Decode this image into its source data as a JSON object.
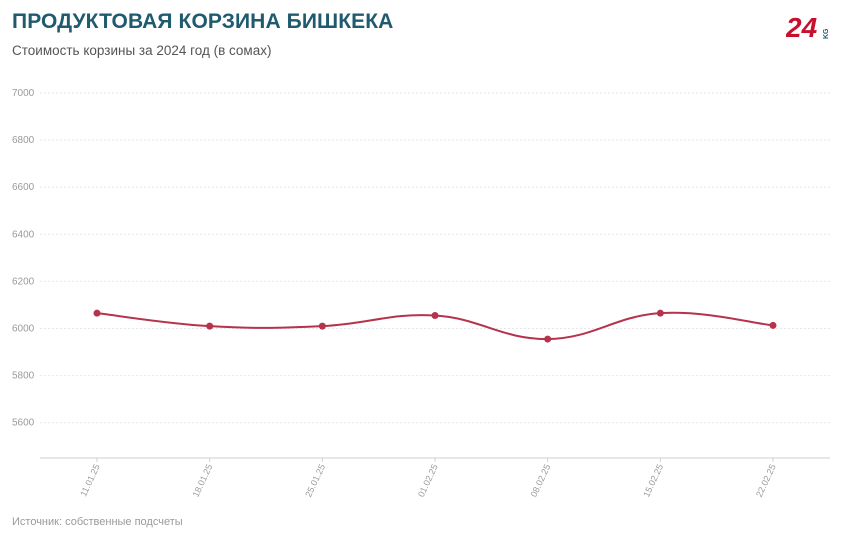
{
  "header": {
    "title": "ПРОДУКТОВАЯ КОРЗИНА БИШКЕКА",
    "subtitle": "Стоимость корзины за 2024 год (в сомах)"
  },
  "logo": {
    "text": "24",
    "suffix": "KG"
  },
  "footer": {
    "source": "Источник: собственные подсчеты"
  },
  "colors": {
    "series": "#b5334c",
    "title": "#1f5a6e",
    "logo": "#c8102e"
  },
  "chart_data": {
    "type": "line",
    "title": "ПРОДУКТОВАЯ КОРЗИНА БИШКЕКА",
    "subtitle": "Стоимость корзины за 2024 год (в сомах)",
    "categories": [
      "11.01.25",
      "18.01.25",
      "25.01.25",
      "01.02.25",
      "08.02.25",
      "15.02.25",
      "22.02.25"
    ],
    "series": [
      {
        "values": [
          6065,
          6010,
          6010,
          6055,
          5955,
          6065,
          6013
        ]
      }
    ],
    "yticks": [
      5600,
      5800,
      6000,
      6200,
      6400,
      6600,
      6800,
      7000
    ],
    "ylim": [
      5450,
      7000
    ],
    "grid": true,
    "smooth": true,
    "legend": "none"
  }
}
